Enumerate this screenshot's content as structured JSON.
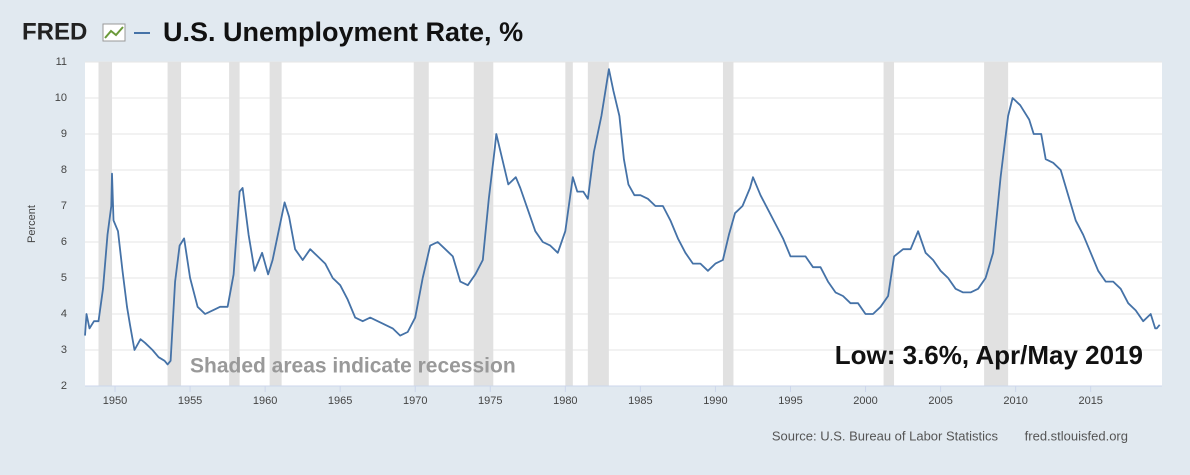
{
  "logo": "FRED",
  "chart_data": {
    "type": "line",
    "title": "U.S. Unemployment Rate, %",
    "y_label": "Percent",
    "annotations": [
      "Shaded areas indicate recession",
      "Low: 3.6%, Apr/May 2019"
    ],
    "source": "Source: U.S. Bureau of Labor Statistics",
    "site": "fred.stlouisfed.org",
    "xlim": [
      1948,
      2019.75
    ],
    "ylim": [
      2,
      11
    ],
    "xticks": [
      1950,
      1955,
      1960,
      1965,
      1970,
      1975,
      1980,
      1985,
      1990,
      1995,
      2000,
      2005,
      2010,
      2015
    ],
    "yticks": [
      2,
      3,
      4,
      5,
      6,
      7,
      8,
      9,
      10,
      11
    ],
    "grid": true,
    "recessions": [
      [
        1948.9,
        1949.8
      ],
      [
        1953.5,
        1954.4
      ],
      [
        1957.6,
        1958.3
      ],
      [
        1960.3,
        1961.1
      ],
      [
        1969.9,
        1970.9
      ],
      [
        1973.9,
        1975.2
      ],
      [
        1980.0,
        1980.5
      ],
      [
        1981.5,
        1982.9
      ],
      [
        1990.5,
        1991.2
      ],
      [
        2001.2,
        2001.9
      ],
      [
        2007.9,
        2009.5
      ]
    ],
    "recession_color": "#e1e1e1",
    "x": [
      1948.0,
      1948.1,
      1948.3,
      1948.6,
      1948.9,
      1949.2,
      1949.5,
      1949.75,
      1949.8,
      1949.9,
      1950.2,
      1950.5,
      1950.8,
      1951.0,
      1951.3,
      1951.7,
      1952.0,
      1952.5,
      1952.9,
      1953.3,
      1953.5,
      1953.7,
      1954.0,
      1954.3,
      1954.6,
      1955.0,
      1955.5,
      1956.0,
      1956.5,
      1957.0,
      1957.5,
      1957.9,
      1958.3,
      1958.5,
      1958.9,
      1959.3,
      1959.8,
      1960.2,
      1960.5,
      1960.9,
      1961.3,
      1961.6,
      1962.0,
      1962.5,
      1963.0,
      1963.5,
      1964.0,
      1964.5,
      1965.0,
      1965.5,
      1966.0,
      1966.5,
      1967.0,
      1967.5,
      1968.0,
      1968.5,
      1969.0,
      1969.5,
      1970.0,
      1970.5,
      1971.0,
      1971.5,
      1972.0,
      1972.5,
      1973.0,
      1973.5,
      1974.0,
      1974.5,
      1974.9,
      1975.3,
      1975.4,
      1975.8,
      1976.2,
      1976.7,
      1977.0,
      1977.5,
      1978.0,
      1978.5,
      1979.0,
      1979.5,
      1980.0,
      1980.5,
      1980.8,
      1981.2,
      1981.5,
      1981.9,
      1982.4,
      1982.9,
      1983.2,
      1983.6,
      1983.9,
      1984.2,
      1984.6,
      1985.0,
      1985.5,
      1986.0,
      1986.5,
      1987.0,
      1987.5,
      1988.0,
      1988.5,
      1989.0,
      1989.5,
      1990.0,
      1990.5,
      1990.9,
      1991.3,
      1991.8,
      1992.3,
      1992.5,
      1993.0,
      1993.5,
      1994.0,
      1994.5,
      1995.0,
      1995.5,
      1996.0,
      1996.5,
      1997.0,
      1997.5,
      1998.0,
      1998.5,
      1999.0,
      1999.5,
      2000.0,
      2000.5,
      2001.0,
      2001.5,
      2001.9,
      2002.5,
      2003.0,
      2003.5,
      2004.0,
      2004.5,
      2005.0,
      2005.5,
      2006.0,
      2006.5,
      2007.0,
      2007.5,
      2008.0,
      2008.5,
      2009.0,
      2009.5,
      2009.8,
      2010.3,
      2010.9,
      2011.2,
      2011.7,
      2012.0,
      2012.5,
      2013.0,
      2013.5,
      2014.0,
      2014.5,
      2015.0,
      2015.5,
      2016.0,
      2016.5,
      2017.0,
      2017.5,
      2018.0,
      2018.5,
      2019.0,
      2019.3,
      2019.4,
      2019.6
    ],
    "series": [
      {
        "name": "Unemployment Rate",
        "color": "#4572a7",
        "values": [
          3.4,
          4.0,
          3.6,
          3.8,
          3.8,
          4.7,
          6.2,
          7.0,
          7.9,
          6.6,
          6.3,
          5.2,
          4.2,
          3.7,
          3.0,
          3.3,
          3.2,
          3.0,
          2.8,
          2.7,
          2.6,
          2.7,
          4.9,
          5.9,
          6.1,
          5.0,
          4.2,
          4.0,
          4.1,
          4.2,
          4.2,
          5.1,
          7.4,
          7.5,
          6.2,
          5.2,
          5.7,
          5.1,
          5.5,
          6.3,
          7.1,
          6.7,
          5.8,
          5.5,
          5.8,
          5.6,
          5.4,
          5.0,
          4.8,
          4.4,
          3.9,
          3.8,
          3.9,
          3.8,
          3.7,
          3.6,
          3.4,
          3.5,
          3.9,
          5.0,
          5.9,
          6.0,
          5.8,
          5.6,
          4.9,
          4.8,
          5.1,
          5.5,
          7.2,
          8.6,
          9.0,
          8.3,
          7.6,
          7.8,
          7.5,
          6.9,
          6.3,
          6.0,
          5.9,
          5.7,
          6.3,
          7.8,
          7.4,
          7.4,
          7.2,
          8.5,
          9.5,
          10.8,
          10.2,
          9.5,
          8.3,
          7.6,
          7.3,
          7.3,
          7.2,
          7.0,
          7.0,
          6.6,
          6.1,
          5.7,
          5.4,
          5.4,
          5.2,
          5.4,
          5.5,
          6.2,
          6.8,
          7.0,
          7.5,
          7.8,
          7.3,
          6.9,
          6.5,
          6.1,
          5.6,
          5.6,
          5.6,
          5.3,
          5.3,
          4.9,
          4.6,
          4.5,
          4.3,
          4.3,
          4.0,
          4.0,
          4.2,
          4.5,
          5.6,
          5.8,
          5.8,
          6.3,
          5.7,
          5.5,
          5.2,
          5.0,
          4.7,
          4.6,
          4.6,
          4.7,
          5.0,
          5.7,
          7.8,
          9.5,
          10.0,
          9.8,
          9.4,
          9.0,
          9.0,
          8.3,
          8.2,
          8.0,
          7.3,
          6.6,
          6.2,
          5.7,
          5.2,
          4.9,
          4.9,
          4.7,
          4.3,
          4.1,
          3.8,
          4.0,
          3.6,
          3.6,
          3.7
        ]
      }
    ]
  }
}
